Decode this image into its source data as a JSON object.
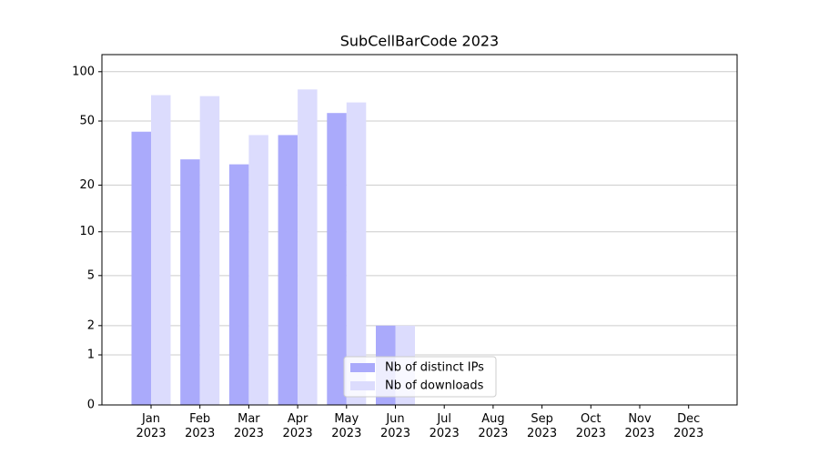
{
  "chart_data": {
    "type": "bar",
    "title": "SubCellBarCode 2023",
    "categories": [
      "Jan\n2023",
      "Feb\n2023",
      "Mar\n2023",
      "Apr\n2023",
      "May\n2023",
      "Jun\n2023",
      "Jul\n2023",
      "Aug\n2023",
      "Sep\n2023",
      "Oct\n2023",
      "Nov\n2023",
      "Dec\n2023"
    ],
    "series": [
      {
        "name": "Nb of distinct IPs",
        "color": "#aaaafb",
        "values": [
          43,
          29,
          27,
          41,
          56,
          2,
          0,
          0,
          0,
          0,
          0,
          0
        ]
      },
      {
        "name": "Nb of downloads",
        "color": "#dcdcfd",
        "values": [
          72,
          71,
          41,
          78,
          65,
          2,
          0,
          0,
          0,
          0,
          0,
          0
        ]
      }
    ],
    "yscale": "log1p",
    "ylim": [
      0,
      127
    ],
    "yticks": [
      0,
      1,
      2,
      5,
      10,
      20,
      50,
      100
    ],
    "grid": true,
    "legend": "lower center"
  }
}
